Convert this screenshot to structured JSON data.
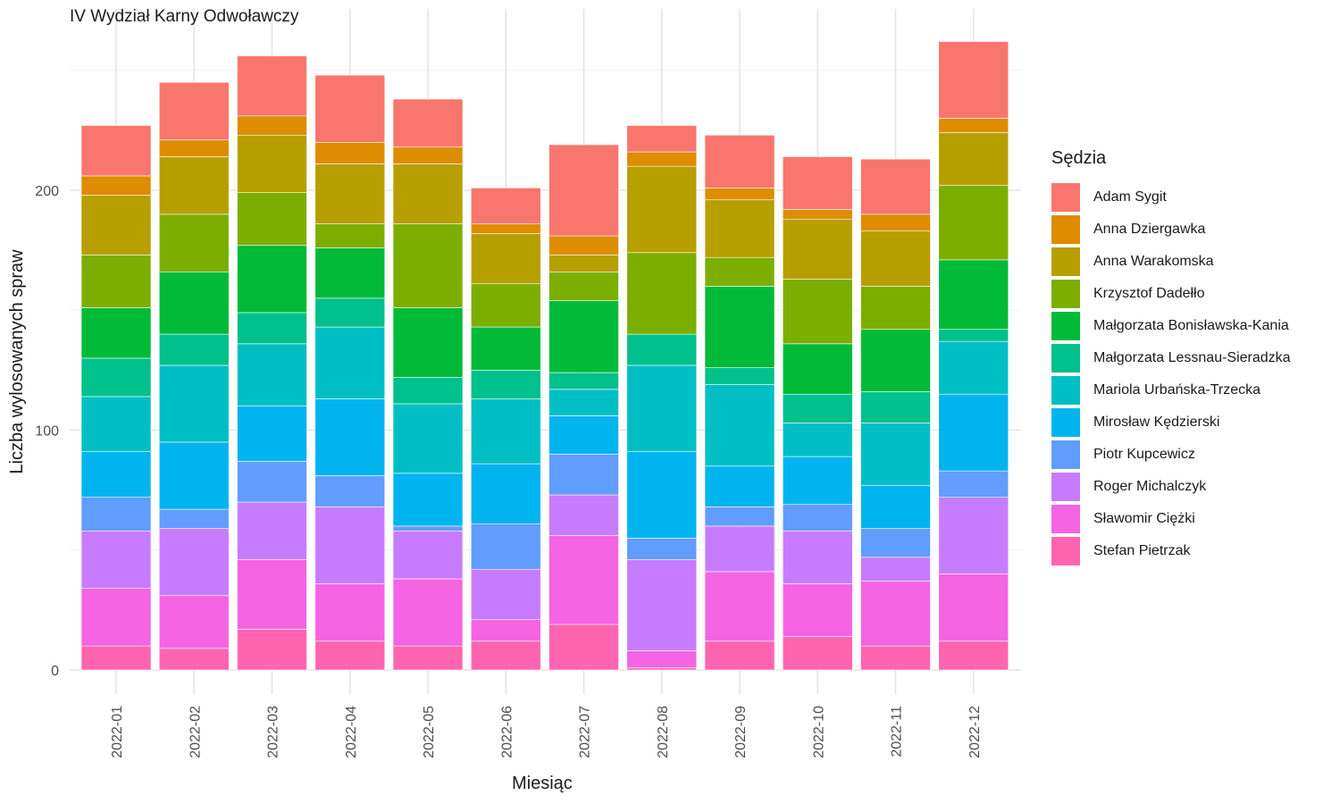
{
  "chart_data": {
    "type": "bar",
    "stacked": true,
    "title": "IV Wydział Karny Odwoławczy",
    "xlabel": "Miesiąc",
    "ylabel": "Liczba wylosowanych spraw",
    "ylim": [
      -10,
      263
    ],
    "yticks": [
      0,
      100,
      200
    ],
    "grid": true,
    "legend_title": "Sędzia",
    "legend_position": "right",
    "categories": [
      "2022-01",
      "2022-02",
      "2022-03",
      "2022-04",
      "2022-05",
      "2022-06",
      "2022-07",
      "2022-08",
      "2022-09",
      "2022-10",
      "2022-11",
      "2022-12"
    ],
    "series": [
      {
        "name": "Adam Sygit",
        "color": "#F8766D",
        "values": [
          21,
          24,
          25,
          28,
          20,
          15,
          38,
          11,
          22,
          22,
          23,
          32
        ]
      },
      {
        "name": "Anna Dziergawka",
        "color": "#DE8C00",
        "values": [
          8,
          7,
          8,
          9,
          7,
          4,
          8,
          6,
          5,
          4,
          7,
          6
        ]
      },
      {
        "name": "Anna Warakomska",
        "color": "#B79F00",
        "values": [
          25,
          24,
          24,
          25,
          25,
          21,
          7,
          36,
          24,
          25,
          23,
          22
        ]
      },
      {
        "name": "Krzysztof Dadełło",
        "color": "#7CAE00",
        "values": [
          22,
          24,
          22,
          10,
          35,
          18,
          12,
          34,
          12,
          27,
          18,
          31
        ]
      },
      {
        "name": "Małgorzata Bonisławska-Kania",
        "color": "#00BA38",
        "values": [
          21,
          26,
          28,
          21,
          29,
          18,
          30,
          0,
          34,
          21,
          26,
          29
        ]
      },
      {
        "name": "Małgorzata Lessnau-Sieradzka",
        "color": "#00C08B",
        "values": [
          16,
          13,
          13,
          12,
          11,
          12,
          7,
          13,
          7,
          12,
          13,
          5
        ]
      },
      {
        "name": "Mariola Urbańska-Trzecka",
        "color": "#00BFC4",
        "values": [
          23,
          32,
          26,
          30,
          29,
          27,
          11,
          36,
          34,
          14,
          26,
          22
        ]
      },
      {
        "name": "Mirosław Kędzierski",
        "color": "#00B4F0",
        "values": [
          19,
          28,
          23,
          32,
          22,
          25,
          16,
          36,
          17,
          20,
          18,
          32
        ]
      },
      {
        "name": "Piotr Kupcewicz",
        "color": "#619CFF",
        "values": [
          14,
          8,
          17,
          13,
          2,
          19,
          17,
          9,
          8,
          11,
          12,
          11
        ]
      },
      {
        "name": "Roger Michalczyk",
        "color": "#C77CFF",
        "values": [
          24,
          28,
          24,
          32,
          20,
          21,
          17,
          38,
          19,
          22,
          10,
          32
        ]
      },
      {
        "name": "Sławomir Ciężki",
        "color": "#F564E3",
        "values": [
          24,
          22,
          29,
          24,
          28,
          9,
          37,
          7,
          29,
          22,
          27,
          28
        ]
      },
      {
        "name": "Stefan Pietrzak",
        "color": "#FF64B0",
        "values": [
          10,
          9,
          17,
          12,
          10,
          12,
          19,
          1,
          12,
          14,
          10,
          12
        ]
      }
    ]
  }
}
